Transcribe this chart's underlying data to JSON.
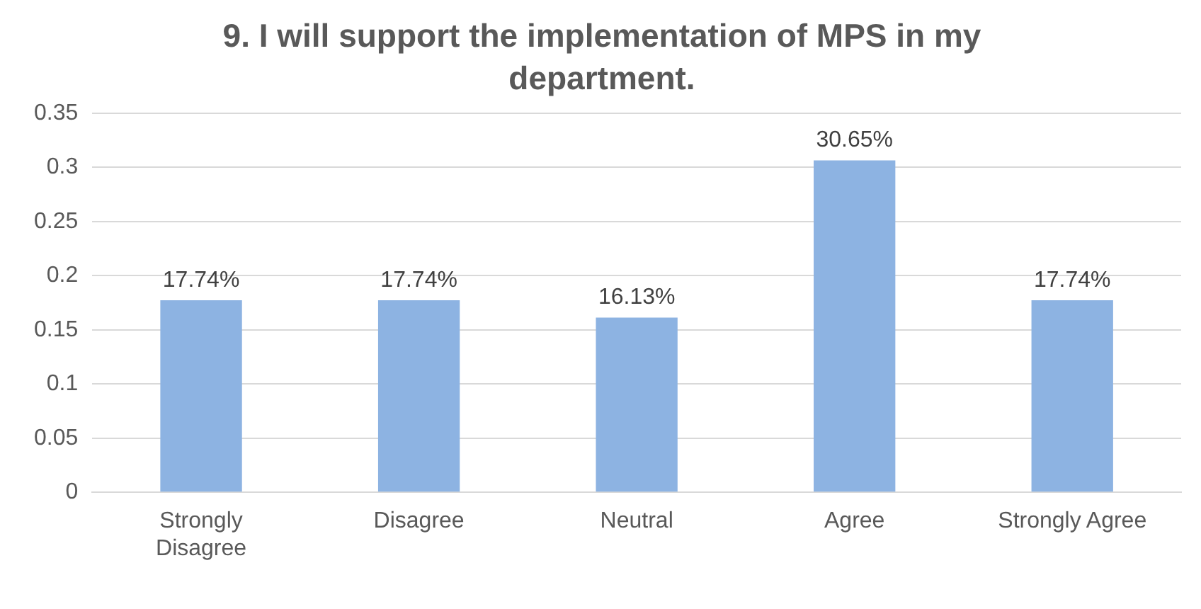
{
  "chart_data": {
    "type": "bar",
    "title": "9. I will support the implementation of MPS in my department.",
    "categories": [
      "Strongly Disagree",
      "Disagree",
      "Neutral",
      "Agree",
      "Strongly Agree"
    ],
    "values": [
      0.1774,
      0.1774,
      0.1613,
      0.3065,
      0.1774
    ],
    "value_labels": [
      "17.74%",
      "17.74%",
      "16.13%",
      "30.65%",
      "17.74%"
    ],
    "color": "#8db3e2",
    "ylim": [
      0,
      0.35
    ],
    "yticks": [
      0,
      0.05,
      0.1,
      0.15,
      0.2,
      0.25,
      0.3,
      0.35
    ],
    "grid": "y",
    "legend": false
  }
}
